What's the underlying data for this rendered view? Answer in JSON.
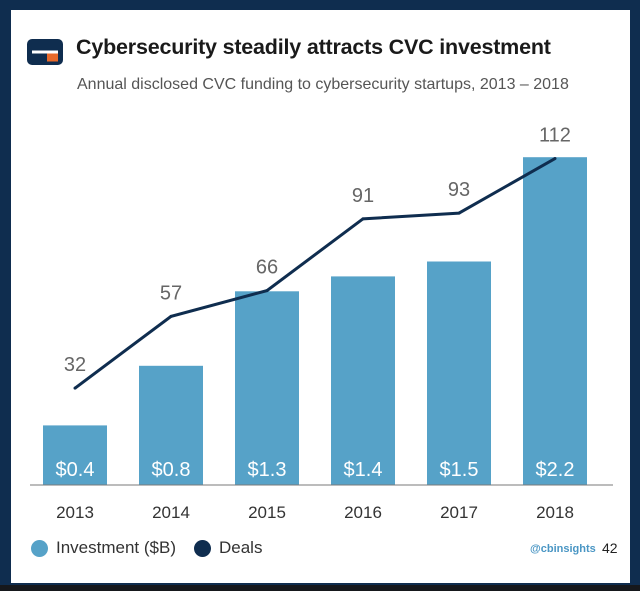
{
  "header": {
    "title": "Cybersecurity steadily attracts CVC investment",
    "subtitle": "Annual disclosed CVC funding to cybersecurity startups,  2013 – 2018"
  },
  "footer": {
    "credit": "@cbinsights",
    "page_number": "42"
  },
  "colors": {
    "background": "#0f2d4f",
    "bar": "#56a2c8",
    "line": "#0f2d4f",
    "logo_dark": "#0f2d4f",
    "logo_orange": "#e8692a"
  },
  "chart_data": {
    "type": "bar",
    "categories": [
      "2013",
      "2014",
      "2015",
      "2016",
      "2017",
      "2018"
    ],
    "legend_position": "bottom-left",
    "series": [
      {
        "name": "Investment ($B)",
        "type": "bar",
        "values": [
          0.4,
          0.8,
          1.3,
          1.4,
          1.5,
          2.2
        ],
        "labels": [
          "$0.4",
          "$0.8",
          "$1.3",
          "$1.4",
          "$1.5",
          "$2.2"
        ],
        "color": "#56a2c8"
      },
      {
        "name": "Deals",
        "type": "line",
        "values": [
          32,
          57,
          66,
          91,
          93,
          112
        ],
        "labels": [
          "32",
          "57",
          "66",
          "91",
          "93",
          "112"
        ],
        "color": "#0f2d4f"
      }
    ]
  }
}
